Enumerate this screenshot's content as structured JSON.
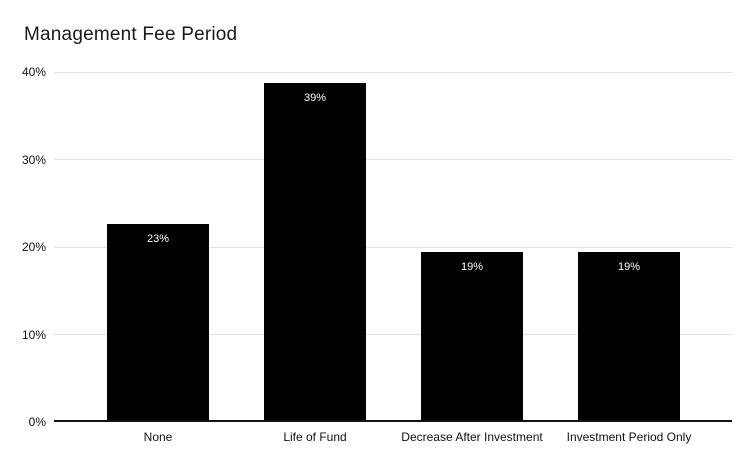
{
  "chart_data": {
    "type": "bar",
    "title": "Management Fee Period",
    "categories": [
      "None",
      "Life of Fund",
      "Decrease After Investment",
      "Investment Period Only"
    ],
    "values": [
      22.6,
      38.7,
      19.4,
      19.4
    ],
    "data_labels": [
      "23%",
      "39%",
      "19%",
      "19%"
    ],
    "xlabel": "",
    "ylabel": "",
    "ylim": [
      0,
      40
    ],
    "yticks": [
      0,
      10,
      20,
      30,
      40
    ],
    "ytick_labels": [
      "0%",
      "10%",
      "20%",
      "30%",
      "40%"
    ],
    "grid": true,
    "legend": false,
    "bar_color": "#000000",
    "data_label_color": "#ffffff",
    "gridline_color": "#e0e0e0",
    "axis_line_color": "#111111",
    "title_color": "#1a1a1a",
    "tick_label_color": "#111111",
    "background_color": "#ffffff"
  }
}
